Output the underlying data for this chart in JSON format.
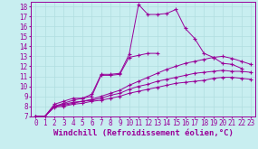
{
  "background_color": "#c8eef0",
  "grid_color": "#b0dde0",
  "line_color": "#990099",
  "marker": "+",
  "xlabel": "Windchill (Refroidissement éolien,°C)",
  "xlabel_fontsize": 6.5,
  "xtick_fontsize": 5.5,
  "ytick_fontsize": 5.5,
  "xlim": [
    -0.5,
    23.5
  ],
  "ylim": [
    7,
    18.5
  ],
  "yticks": [
    7,
    8,
    9,
    10,
    11,
    12,
    13,
    14,
    15,
    16,
    17,
    18
  ],
  "xticks": [
    0,
    1,
    2,
    3,
    4,
    5,
    6,
    7,
    8,
    9,
    10,
    11,
    12,
    13,
    14,
    15,
    16,
    17,
    18,
    19,
    20,
    21,
    22,
    23
  ],
  "curves": [
    {
      "x": [
        0,
        1,
        2,
        3,
        4,
        5,
        6,
        7,
        8,
        9,
        10,
        11,
        12,
        13,
        14,
        15,
        16,
        17,
        18,
        19,
        20,
        21,
        22
      ],
      "y": [
        7.0,
        7.0,
        8.2,
        8.5,
        8.8,
        8.8,
        9.2,
        11.2,
        11.2,
        11.3,
        13.2,
        18.2,
        17.2,
        17.2,
        17.3,
        17.7,
        15.8,
        14.8,
        13.3,
        12.9,
        12.3,
        12.2,
        11.8
      ]
    },
    {
      "x": [
        0,
        1,
        2,
        3,
        4,
        5,
        6,
        7,
        8,
        9,
        10,
        11,
        12,
        13
      ],
      "y": [
        7.0,
        7.0,
        8.0,
        8.3,
        8.6,
        8.8,
        9.0,
        11.1,
        11.1,
        11.2,
        12.9,
        13.1,
        13.3,
        13.3
      ]
    },
    {
      "x": [
        0,
        1,
        2,
        3,
        4,
        5,
        6,
        7,
        8,
        9,
        10,
        11,
        12,
        13,
        14,
        15,
        16,
        17,
        18,
        19,
        20,
        21,
        22,
        23
      ],
      "y": [
        7.0,
        7.0,
        8.0,
        8.2,
        8.4,
        8.5,
        8.7,
        9.0,
        9.3,
        9.6,
        10.1,
        10.5,
        10.9,
        11.3,
        11.7,
        12.0,
        12.3,
        12.5,
        12.7,
        12.9,
        13.0,
        12.8,
        12.5,
        12.2
      ]
    },
    {
      "x": [
        0,
        1,
        2,
        3,
        4,
        5,
        6,
        7,
        8,
        9,
        10,
        11,
        12,
        13,
        14,
        15,
        16,
        17,
        18,
        19,
        20,
        21,
        22,
        23
      ],
      "y": [
        7.0,
        7.0,
        8.0,
        8.1,
        8.3,
        8.5,
        8.6,
        8.8,
        9.1,
        9.3,
        9.7,
        10.0,
        10.2,
        10.5,
        10.7,
        10.9,
        11.1,
        11.3,
        11.4,
        11.5,
        11.6,
        11.5,
        11.5,
        11.4
      ]
    },
    {
      "x": [
        0,
        1,
        2,
        3,
        4,
        5,
        6,
        7,
        8,
        9,
        10,
        11,
        12,
        13,
        14,
        15,
        16,
        17,
        18,
        19,
        20,
        21,
        22,
        23
      ],
      "y": [
        7.0,
        7.0,
        7.9,
        8.0,
        8.2,
        8.3,
        8.5,
        8.6,
        8.8,
        9.0,
        9.3,
        9.5,
        9.7,
        9.9,
        10.1,
        10.3,
        10.4,
        10.5,
        10.6,
        10.8,
        10.9,
        10.9,
        10.8,
        10.7
      ]
    }
  ]
}
